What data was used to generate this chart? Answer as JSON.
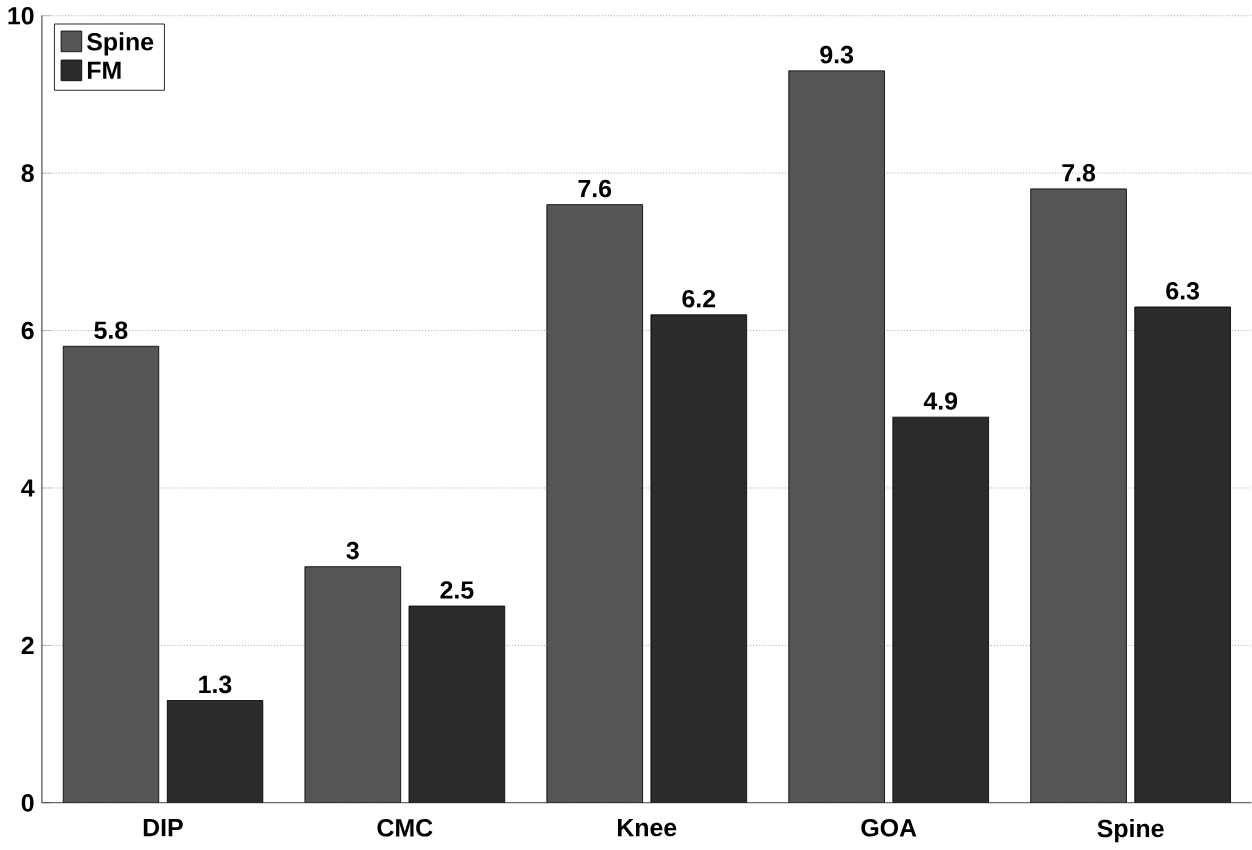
{
  "chart_data": {
    "type": "bar",
    "categories": [
      "DIP",
      "CMC",
      "Knee",
      "GOA",
      "Spine"
    ],
    "series": [
      {
        "name": "Spine",
        "color": "#555555",
        "values": [
          5.8,
          3,
          7.6,
          9.3,
          7.8
        ]
      },
      {
        "name": "FM",
        "color": "#2b2b2b",
        "values": [
          1.3,
          2.5,
          6.2,
          4.9,
          6.3
        ]
      }
    ],
    "ylim": [
      0,
      10
    ],
    "yticks": [
      0,
      2,
      4,
      6,
      8,
      10
    ],
    "grid": "y",
    "legend": "top left",
    "data_labels": true
  }
}
